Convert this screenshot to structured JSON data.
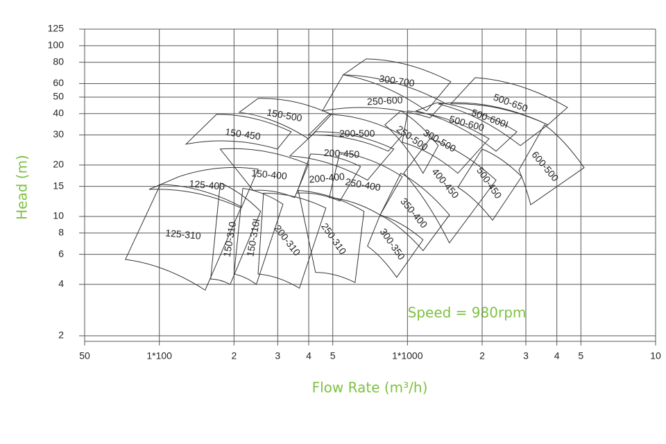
{
  "chart_data": {
    "type": "region",
    "x_label": "Flow Rate (m³/h)",
    "y_label": "Head (m)",
    "annotation": "Speed = 980rpm",
    "accent_color": "#7dc142",
    "xscale": "log",
    "yscale": "log",
    "grid": true,
    "xlim": [
      50,
      10000
    ],
    "ylim": [
      2,
      125
    ],
    "xticks": [
      50,
      {
        "value": 100,
        "label": "1*100"
      },
      {
        "value": 200,
        "label": "2"
      },
      {
        "value": 300,
        "label": "3"
      },
      {
        "value": 400,
        "label": "4"
      },
      {
        "value": 500,
        "label": "5"
      },
      {
        "value": 1000,
        "label": "1*1000"
      },
      {
        "value": 2000,
        "label": "2"
      },
      {
        "value": 3000,
        "label": "3"
      },
      {
        "value": 4000,
        "label": "4"
      },
      {
        "value": 5000,
        "label": "5"
      },
      {
        "value": 10000,
        "label": "10"
      }
    ],
    "yticks": [
      2,
      4,
      6,
      8,
      10,
      15,
      20,
      30,
      40,
      50,
      60,
      80,
      100,
      125
    ],
    "regions": [
      {
        "label": "125-310",
        "corners": [
          [
            101,
            15.4
          ],
          [
            214,
            11.4
          ],
          [
            153,
            3.7
          ],
          [
            73,
            5.6
          ]
        ]
      },
      {
        "label": "125-400",
        "corners": [
          [
            120,
            17.1
          ],
          [
            250,
            18.9
          ],
          [
            214,
            11.2
          ],
          [
            91,
            14.4
          ]
        ]
      },
      {
        "label": "150-310",
        "corners": [
          [
            176,
            15.7
          ],
          [
            256,
            10.7
          ],
          [
            193,
            4.0
          ],
          [
            161,
            4.3
          ]
        ]
      },
      {
        "label": "150-310I",
        "corners": [
          [
            217,
            14.6
          ],
          [
            315,
            11.8
          ],
          [
            246,
            4.0
          ],
          [
            200,
            4.6
          ]
        ]
      },
      {
        "label": "200-310",
        "corners": [
          [
            263,
            13.7
          ],
          [
            469,
            11.2
          ],
          [
            367,
            3.8
          ],
          [
            250,
            4.6
          ]
        ]
      },
      {
        "label": "250-310",
        "corners": [
          [
            363,
            14.2
          ],
          [
            668,
            10.7
          ],
          [
            615,
            4.1
          ],
          [
            426,
            4.7
          ]
        ]
      },
      {
        "label": "150-400",
        "corners": [
          [
            176,
            24.8
          ],
          [
            399,
            20.2
          ],
          [
            351,
            12.9
          ],
          [
            239,
            14.2
          ]
        ]
      },
      {
        "label": "150-450",
        "corners": [
          [
            170,
            39.6
          ],
          [
            340,
            31.3
          ],
          [
            299,
            24.8
          ],
          [
            128,
            26.5
          ]
        ]
      },
      {
        "label": "150-500",
        "corners": [
          [
            250,
            49.1
          ],
          [
            494,
            39.6
          ],
          [
            399,
            28.5
          ],
          [
            210,
            40.7
          ]
        ]
      },
      {
        "label": "200-400",
        "corners": [
          [
            407,
            23.2
          ],
          [
            647,
            19.6
          ],
          [
            534,
            12.3
          ],
          [
            358,
            13.7
          ]
        ]
      },
      {
        "label": "200-450",
        "corners": [
          [
            426,
            31.3
          ],
          [
            881,
            24.8
          ],
          [
            690,
            16.3
          ],
          [
            336,
            22.6
          ]
        ]
      },
      {
        "label": "200-500",
        "corners": [
          [
            484,
            39.6
          ],
          [
            953,
            29.9
          ],
          [
            837,
            24.1
          ],
          [
            399,
            29.9
          ]
        ]
      },
      {
        "label": "250-400",
        "corners": [
          [
            534,
            23.7
          ],
          [
            953,
            17.1
          ],
          [
            776,
            10.2
          ],
          [
            484,
            12.9
          ]
        ]
      },
      {
        "label": "250-500",
        "corners": [
          [
            940,
            41.5
          ],
          [
            1331,
            26.0
          ],
          [
            1156,
            17.9
          ],
          [
            811,
            34.4
          ]
        ]
      },
      {
        "label": "250-600",
        "corners": [
          [
            551,
            67.5
          ],
          [
            1402,
            46.4
          ],
          [
            1233,
            37.8
          ],
          [
            454,
            41.5
          ]
        ]
      },
      {
        "label": "300-700",
        "corners": [
          [
            682,
            83.7
          ],
          [
            1496,
            61.5
          ],
          [
            1194,
            41.5
          ],
          [
            551,
            67.5
          ]
        ]
      },
      {
        "label": "300-350",
        "corners": [
          [
            776,
            10.2
          ],
          [
            1156,
            7.3
          ],
          [
            905,
            4.4
          ],
          [
            690,
            6.7
          ]
        ]
      },
      {
        "label": "350-400",
        "corners": [
          [
            940,
            17.9
          ],
          [
            1476,
            10.2
          ],
          [
            1156,
            6.3
          ],
          [
            776,
            10.2
          ]
        ]
      },
      {
        "label": "400-450",
        "corners": [
          [
            1233,
            28.5
          ],
          [
            2275,
            16.3
          ],
          [
            1476,
            7.0
          ],
          [
            966,
            17.9
          ]
        ]
      },
      {
        "label": "300-500",
        "corners": [
          [
            1003,
            41.5
          ],
          [
            2132,
            28.5
          ],
          [
            1596,
            17.9
          ],
          [
            953,
            27.2
          ]
        ]
      },
      {
        "label": "500-450",
        "corners": [
          [
            2000,
            24.8
          ],
          [
            2886,
            17.1
          ],
          [
            2203,
            9.5
          ],
          [
            1596,
            14.8
          ]
        ]
      },
      {
        "label": "500-600",
        "corners": [
          [
            1315,
            46.4
          ],
          [
            2761,
            31.3
          ],
          [
            2275,
            24.1
          ],
          [
            1084,
            41.5
          ]
        ]
      },
      {
        "label": "500-600I",
        "corners": [
          [
            1514,
            46.4
          ],
          [
            3681,
            34.4
          ],
          [
            2851,
            26.0
          ],
          [
            1331,
            45.6
          ]
        ]
      },
      {
        "label": "500-650",
        "corners": [
          [
            1875,
            65
          ],
          [
            4414,
            43.5
          ],
          [
            3681,
            34.4
          ],
          [
            1496,
            45.6
          ]
        ]
      },
      {
        "label": "600-500",
        "corners": [
          [
            3566,
            34.4
          ],
          [
            5152,
            19.3
          ],
          [
            3138,
            11.7
          ],
          [
            2812,
            18.7
          ]
        ]
      }
    ]
  }
}
